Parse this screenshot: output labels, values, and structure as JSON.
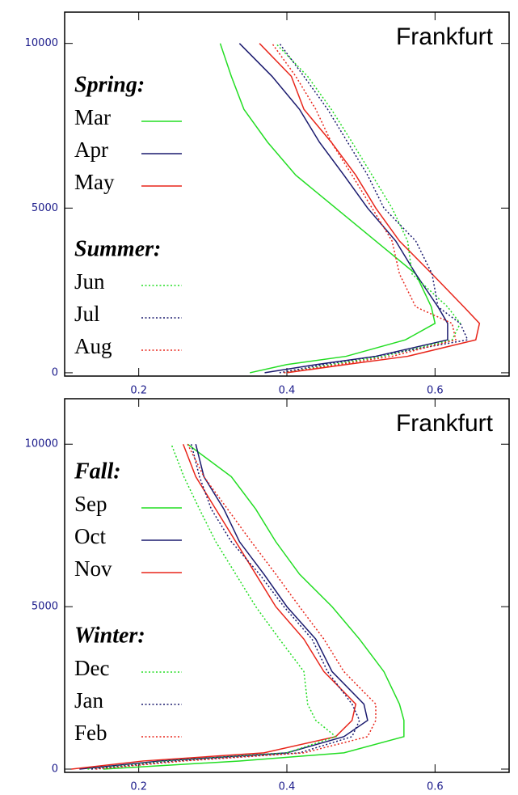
{
  "chart_data": [
    {
      "type": "line",
      "title": "Frankfurt",
      "legend_titles": [
        "Spring:",
        "Summer:"
      ],
      "y": [
        0,
        250,
        500,
        1000,
        1500,
        2000,
        3000,
        4000,
        5000,
        6000,
        7000,
        8000,
        9000,
        10000
      ],
      "xlim": [
        0.1,
        0.7
      ],
      "ylim": [
        -100,
        10950
      ],
      "xticks": [
        0.2,
        0.4,
        0.6
      ],
      "yticks": [
        0,
        5000,
        10000
      ],
      "series": [
        {
          "name": "Mar",
          "color": "#22dd22",
          "style": "solid",
          "values": [
            0.35,
            0.4,
            0.48,
            0.56,
            0.6,
            0.595,
            0.574,
            0.52,
            0.466,
            0.412,
            0.374,
            0.342,
            0.325,
            0.31
          ]
        },
        {
          "name": "Apr",
          "color": "#1a1a6e",
          "style": "solid",
          "values": [
            0.37,
            0.44,
            0.52,
            0.617,
            0.617,
            0.604,
            0.574,
            0.547,
            0.509,
            0.477,
            0.444,
            0.417,
            0.38,
            0.336
          ]
        },
        {
          "name": "May",
          "color": "#e8251a",
          "style": "solid",
          "values": [
            0.4,
            0.48,
            0.563,
            0.655,
            0.66,
            0.639,
            0.596,
            0.552,
            0.52,
            0.493,
            0.46,
            0.423,
            0.406,
            0.363
          ]
        },
        {
          "name": "Jun",
          "color": "#22dd22",
          "style": "dotted",
          "values": [
            0.396,
            0.46,
            0.53,
            0.623,
            0.634,
            0.617,
            0.569,
            0.563,
            0.542,
            0.515,
            0.488,
            0.46,
            0.428,
            0.385
          ]
        },
        {
          "name": "Jul",
          "color": "#1a1a6e",
          "style": "dotted",
          "values": [
            0.39,
            0.45,
            0.52,
            0.644,
            0.634,
            0.604,
            0.596,
            0.574,
            0.531,
            0.509,
            0.482,
            0.455,
            0.423,
            0.39
          ]
        },
        {
          "name": "Aug",
          "color": "#e8251a",
          "style": "dotted",
          "values": [
            0.396,
            0.47,
            0.542,
            0.628,
            0.623,
            0.574,
            0.552,
            0.542,
            0.515,
            0.488,
            0.46,
            0.439,
            0.412,
            0.38
          ]
        }
      ]
    },
    {
      "type": "line",
      "title": "Frankfurt",
      "legend_titles": [
        "Fall:",
        "Winter:"
      ],
      "y": [
        0,
        250,
        500,
        1000,
        1500,
        2000,
        3000,
        4000,
        5000,
        6000,
        7000,
        8000,
        9000,
        10000
      ],
      "xlim": [
        0.1,
        0.7
      ],
      "ylim": [
        -100,
        11400
      ],
      "xticks": [
        0.2,
        0.4,
        0.6
      ],
      "yticks": [
        0,
        5000,
        10000
      ],
      "series": [
        {
          "name": "Sep",
          "color": "#22dd22",
          "style": "solid",
          "values": [
            0.152,
            0.336,
            0.477,
            0.558,
            0.558,
            0.552,
            0.531,
            0.498,
            0.461,
            0.417,
            0.385,
            0.358,
            0.325,
            0.266
          ]
        },
        {
          "name": "Oct",
          "color": "#1a1a6e",
          "style": "solid",
          "values": [
            0.12,
            0.228,
            0.4,
            0.477,
            0.509,
            0.504,
            0.461,
            0.439,
            0.4,
            0.369,
            0.336,
            0.315,
            0.288,
            0.277
          ]
        },
        {
          "name": "Nov",
          "color": "#e8251a",
          "style": "solid",
          "values": [
            0.109,
            0.206,
            0.369,
            0.466,
            0.488,
            0.493,
            0.45,
            0.423,
            0.385,
            0.358,
            0.331,
            0.304,
            0.277,
            0.26
          ]
        },
        {
          "name": "Dec",
          "color": "#22dd22",
          "style": "dotted",
          "values": [
            0.131,
            0.239,
            0.4,
            0.466,
            0.439,
            0.428,
            0.423,
            0.39,
            0.358,
            0.331,
            0.304,
            0.282,
            0.261,
            0.244
          ]
        },
        {
          "name": "Jan",
          "color": "#1a1a6e",
          "style": "dotted",
          "values": [
            0.136,
            0.25,
            0.417,
            0.488,
            0.498,
            0.488,
            0.455,
            0.434,
            0.396,
            0.363,
            0.325,
            0.298,
            0.282,
            0.271
          ]
        },
        {
          "name": "Feb",
          "color": "#e8251a",
          "style": "dotted",
          "values": [
            0.142,
            0.261,
            0.423,
            0.509,
            0.52,
            0.52,
            0.477,
            0.45,
            0.417,
            0.385,
            0.352,
            0.32,
            0.288,
            0.266
          ]
        }
      ]
    }
  ]
}
